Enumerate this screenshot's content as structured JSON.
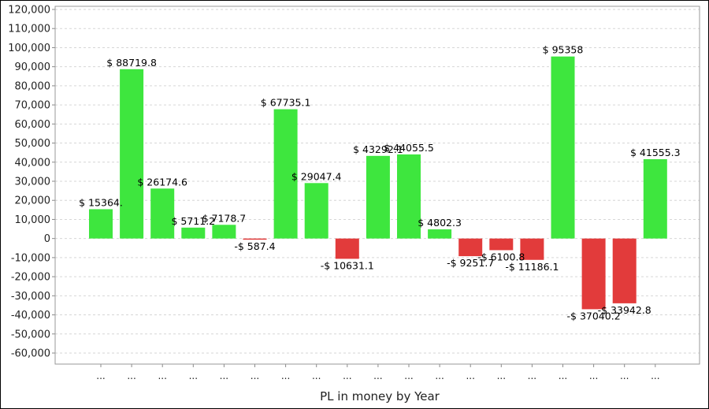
{
  "chart_data": {
    "type": "bar",
    "title": "",
    "xlabel": "PL in money by Year",
    "ylabel": "",
    "categories": [
      "...",
      "...",
      "...",
      "...",
      "...",
      "...",
      "...",
      "...",
      "...",
      "...",
      "...",
      "...",
      "...",
      "...",
      "...",
      "...",
      "...",
      "...",
      "..."
    ],
    "values": [
      15364.0,
      88719.8,
      26174.6,
      5711.2,
      7178.7,
      -587.4,
      67735.1,
      29047.4,
      -10631.1,
      43292.1,
      44055.5,
      4802.3,
      -9251.7,
      -6100.8,
      -11186.1,
      95358,
      -37040.2,
      -33942.8,
      41555.3
    ],
    "data_labels": [
      "$ 15364.",
      "$ 88719.8",
      "$ 26174.6",
      "$ 5711.2",
      "$ 7178.7",
      "-$ 587.4",
      "$ 67735.1",
      "$ 29047.4",
      "-$ 10631.1",
      "$ 43292.1",
      "$ 44055.5",
      "$ 4802.3",
      "-$ 9251.7",
      "-$ 6100.8",
      "-$ 11186.1",
      "$ 95358",
      "-$ 37040.2",
      "-$ 33942.8",
      "$ 41555.3"
    ],
    "ylim": [
      -60000,
      120000
    ],
    "y_ticks": [
      "-60,000",
      "-50,000",
      "-40,000",
      "-30,000",
      "-20,000",
      "-10,000",
      "0",
      "10,000",
      "20,000",
      "30,000",
      "40,000",
      "50,000",
      "60,000",
      "70,000",
      "80,000",
      "90,000",
      "100,000",
      "110,000",
      "120,000"
    ],
    "grid": true,
    "positive_color": "#3ee63e",
    "negative_color": "#e23b3b"
  }
}
